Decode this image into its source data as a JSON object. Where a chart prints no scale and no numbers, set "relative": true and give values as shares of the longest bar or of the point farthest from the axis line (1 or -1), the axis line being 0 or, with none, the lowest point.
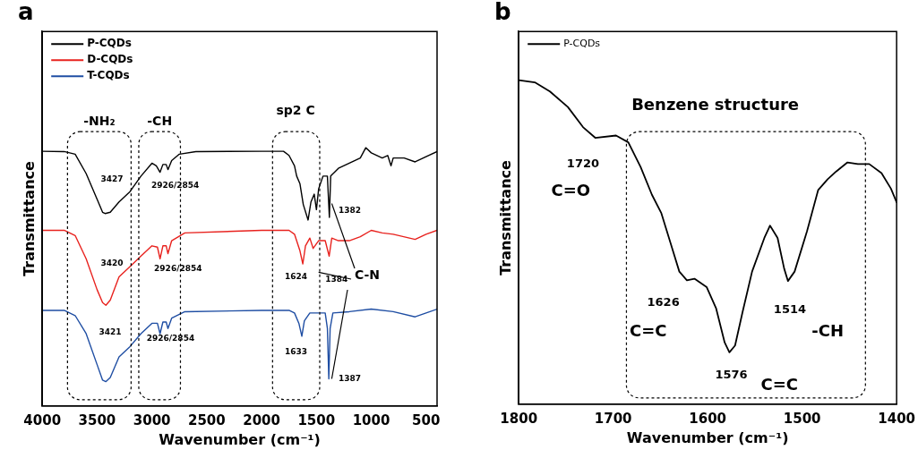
{
  "chart_data": [
    {
      "type": "line",
      "title": "a",
      "xlabel": "Wavenumber (cm⁻¹)",
      "ylabel": "Transmittance",
      "relative": true,
      "xlim": [
        4000,
        400
      ],
      "xticks": [
        4000,
        3500,
        3000,
        2500,
        2000,
        1500,
        1000,
        500
      ],
      "tick_labels": "x",
      "grid": false,
      "legend": "top left",
      "marker": "none",
      "line_style": "solid",
      "series": [
        {
          "name": "P-CQDs",
          "color": "#000000",
          "x": [
            4000,
            3800,
            3700,
            3600,
            3500,
            3450,
            3427,
            3380,
            3300,
            3250,
            3200,
            3100,
            3000,
            2960,
            2926,
            2900,
            2870,
            2854,
            2820,
            2750,
            2600,
            2000,
            1800,
            1750,
            1700,
            1680,
            1650,
            1620,
            1576,
            1550,
            1520,
            1500,
            1480,
            1440,
            1400,
            1382,
            1370,
            1300,
            1200,
            1100,
            1050,
            1000,
            900,
            850,
            820,
            800,
            700,
            600,
            500,
            400
          ],
          "values": [
            0.986,
            0.985,
            0.975,
            0.9,
            0.8,
            0.75,
            0.745,
            0.75,
            0.79,
            0.81,
            0.83,
            0.89,
            0.94,
            0.93,
            0.905,
            0.935,
            0.935,
            0.915,
            0.95,
            0.975,
            0.985,
            0.986,
            0.986,
            0.97,
            0.93,
            0.89,
            0.86,
            0.78,
            0.72,
            0.79,
            0.82,
            0.76,
            0.84,
            0.89,
            0.89,
            0.73,
            0.89,
            0.92,
            0.94,
            0.96,
            1.0,
            0.98,
            0.96,
            0.97,
            0.93,
            0.96,
            0.96,
            0.945,
            0.965,
            0.985
          ]
        },
        {
          "name": "D-CQDs",
          "color": "#e8221e",
          "x": [
            4000,
            3800,
            3700,
            3600,
            3500,
            3450,
            3420,
            3380,
            3300,
            3200,
            3100,
            3000,
            2950,
            2926,
            2900,
            2870,
            2854,
            2820,
            2700,
            2000,
            1750,
            1700,
            1650,
            1624,
            1600,
            1560,
            1530,
            1480,
            1420,
            1384,
            1360,
            1300,
            1200,
            1100,
            1000,
            900,
            800,
            600,
            500,
            400
          ],
          "values": [
            0.68,
            0.68,
            0.66,
            0.57,
            0.45,
            0.4,
            0.39,
            0.41,
            0.5,
            0.54,
            0.58,
            0.62,
            0.615,
            0.57,
            0.62,
            0.62,
            0.59,
            0.64,
            0.67,
            0.68,
            0.68,
            0.665,
            0.6,
            0.55,
            0.62,
            0.65,
            0.61,
            0.64,
            0.64,
            0.58,
            0.65,
            0.64,
            0.64,
            0.655,
            0.68,
            0.67,
            0.665,
            0.645,
            0.665,
            0.68
          ]
        },
        {
          "name": "T-CQDs",
          "color": "#1f4ea3",
          "x": [
            4000,
            3800,
            3700,
            3600,
            3500,
            3450,
            3421,
            3380,
            3300,
            3200,
            3100,
            3000,
            2950,
            2926,
            2900,
            2870,
            2854,
            2820,
            2700,
            2000,
            1750,
            1700,
            1660,
            1633,
            1610,
            1560,
            1500,
            1420,
            1400,
            1387,
            1375,
            1350,
            1200,
            1000,
            800,
            600,
            500,
            400
          ],
          "values": [
            0.37,
            0.37,
            0.35,
            0.28,
            0.16,
            0.1,
            0.094,
            0.11,
            0.19,
            0.23,
            0.28,
            0.32,
            0.32,
            0.28,
            0.325,
            0.325,
            0.3,
            0.34,
            0.365,
            0.37,
            0.37,
            0.36,
            0.32,
            0.27,
            0.33,
            0.36,
            0.36,
            0.36,
            0.3,
            0.105,
            0.3,
            0.36,
            0.365,
            0.375,
            0.365,
            0.345,
            0.36,
            0.375
          ]
        }
      ],
      "annotations": [
        "-NH₂",
        "-CH",
        "sp2 C",
        "3427",
        "2926/2854",
        "3420",
        "2926/2854",
        "3421",
        "2926/2854",
        "1382",
        "1624",
        "1384",
        "1633",
        "1387",
        "C-N"
      ]
    },
    {
      "type": "line",
      "title": "b",
      "xlabel": "Wavenumber (cm⁻¹)",
      "ylabel": "Transmittance",
      "relative": true,
      "xlim": [
        1800,
        1400
      ],
      "xticks": [
        1800,
        1700,
        1600,
        1500,
        1400
      ],
      "tick_labels": "x",
      "grid": false,
      "legend": "top left",
      "marker": "none",
      "line_style": "solid",
      "series": [
        {
          "name": "P-CQDs",
          "color": "#000000",
          "x": [
            1800,
            1783,
            1767,
            1748,
            1732,
            1719,
            1697,
            1684,
            1671,
            1659,
            1649,
            1639,
            1630,
            1622,
            1614,
            1601,
            1591,
            1582,
            1577,
            1571,
            1563,
            1553,
            1540,
            1534,
            1526,
            1519,
            1515,
            1508,
            1495,
            1483,
            1473,
            1464,
            1452,
            1441,
            1429,
            1416,
            1406,
            1400
          ],
          "values": [
            1.0,
            0.993,
            0.965,
            0.917,
            0.855,
            0.822,
            0.829,
            0.808,
            0.732,
            0.646,
            0.589,
            0.494,
            0.409,
            0.382,
            0.387,
            0.361,
            0.295,
            0.19,
            0.16,
            0.181,
            0.285,
            0.409,
            0.513,
            0.551,
            0.513,
            0.418,
            0.38,
            0.409,
            0.532,
            0.661,
            0.694,
            0.718,
            0.746,
            0.741,
            0.741,
            0.713,
            0.665,
            0.623
          ]
        }
      ],
      "annotations": [
        "Benzene structure",
        "1720",
        "C=O",
        "1626",
        "C=C",
        "1576",
        "C=C",
        "1514",
        "-CH"
      ]
    }
  ]
}
